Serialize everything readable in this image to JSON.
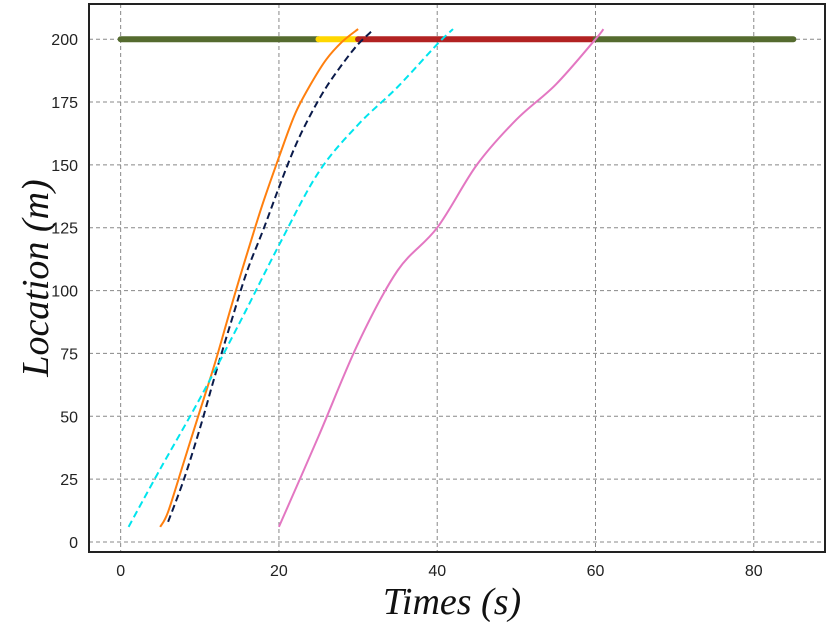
{
  "chart_data": {
    "type": "line",
    "title": "",
    "xlabel": "Times (s)",
    "ylabel": "Location (m)",
    "xlim": [
      -4,
      89
    ],
    "ylim": [
      -4,
      214
    ],
    "xticks": [
      0,
      20,
      40,
      60,
      80
    ],
    "yticks": [
      0,
      25,
      50,
      75,
      100,
      125,
      150,
      175,
      200
    ],
    "grid": true,
    "signal_bar": {
      "y": 200,
      "segments": [
        {
          "x": [
            0,
            25
          ],
          "color": "#556b2f"
        },
        {
          "x": [
            25,
            30
          ],
          "color": "#ffd700"
        },
        {
          "x": [
            30,
            60
          ],
          "color": "#b22222"
        },
        {
          "x": [
            60,
            85
          ],
          "color": "#556b2f"
        }
      ]
    },
    "series": [
      {
        "color": "#ff7f0e",
        "dash": "solid",
        "x": [
          5,
          6,
          8,
          10,
          12,
          14,
          16,
          18,
          20,
          22,
          24,
          26,
          28,
          30
        ],
        "y": [
          6,
          12,
          32,
          52,
          72,
          94,
          115,
          135,
          153,
          170,
          182,
          192,
          199,
          204
        ]
      },
      {
        "color": "#0a1a4a",
        "dash": "dashed",
        "x": [
          6,
          8,
          10,
          12,
          14,
          16,
          18,
          20,
          22,
          24,
          26,
          28,
          30,
          32
        ],
        "y": [
          8,
          25,
          45,
          67,
          88,
          108,
          124,
          141,
          157,
          170,
          181,
          190,
          198,
          204
        ]
      },
      {
        "color": "#00e5ee",
        "dash": "dashed",
        "x": [
          1,
          5,
          10,
          15,
          20,
          25,
          30,
          35,
          40,
          42
        ],
        "y": [
          6,
          29,
          57,
          87,
          118,
          147,
          166,
          181,
          198,
          204
        ]
      },
      {
        "color": "#e377c2",
        "dash": "solid",
        "x": [
          20,
          25,
          30,
          35,
          40,
          45,
          50,
          55,
          60,
          61
        ],
        "y": [
          6,
          42,
          79,
          108,
          125,
          150,
          168,
          182,
          200,
          204
        ]
      }
    ]
  }
}
